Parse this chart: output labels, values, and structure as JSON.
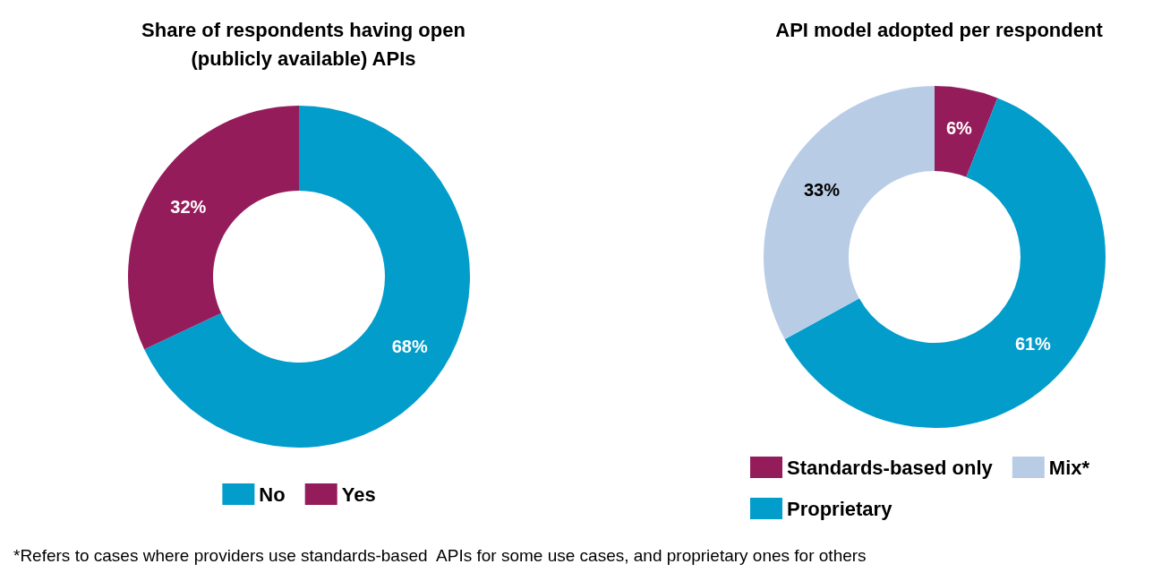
{
  "chart_data": [
    {
      "type": "donut",
      "title": "Share of respondents having open\n(publicly available) APIs",
      "categories": [
        "No",
        "Yes"
      ],
      "values": [
        68,
        32
      ],
      "colors": [
        "#029dcb",
        "#951c5b"
      ],
      "value_labels": [
        "68%",
        "32%"
      ],
      "legend": "bottom",
      "annotations": [
        "*Refers to cases where providers use standards-based  APIs for some use cases, and proprietary ones for others"
      ]
    },
    {
      "type": "donut",
      "title": "API model adopted per respondent",
      "categories": [
        "Standards-based only",
        "Proprietary",
        "Mix*"
      ],
      "values": [
        6,
        61,
        33
      ],
      "colors": [
        "#951c5b",
        "#029dcb",
        "#b9cce6"
      ],
      "value_labels": [
        "6%",
        "61%",
        "33%"
      ],
      "legend": "bottom"
    }
  ]
}
